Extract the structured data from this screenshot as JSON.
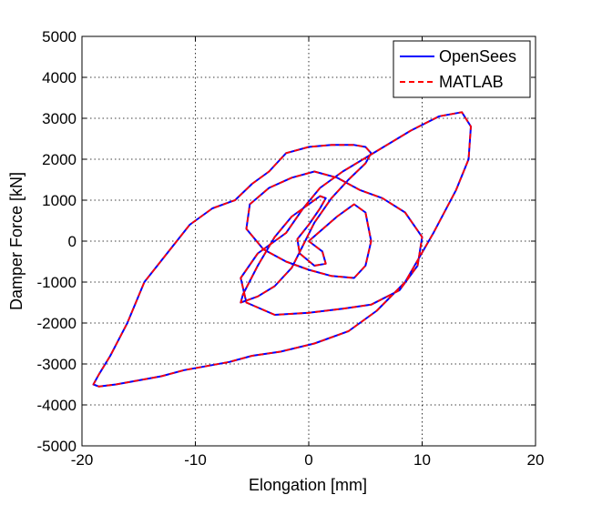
{
  "chart_data": {
    "type": "line",
    "title": "",
    "xlabel": "Elongation [mm]",
    "ylabel": "Damper Force [kN]",
    "xlim": [
      -20,
      20
    ],
    "ylim": [
      -5000,
      5000
    ],
    "xticks": [
      -20,
      -10,
      0,
      10,
      20
    ],
    "yticks": [
      -5000,
      -4000,
      -3000,
      -2000,
      -1000,
      0,
      1000,
      2000,
      3000,
      4000,
      5000
    ],
    "xtick_labels": [
      "-20",
      "-10",
      "0",
      "10",
      "20"
    ],
    "ytick_labels": [
      "-5000",
      "-4000",
      "-3000",
      "-2000",
      "-1000",
      "0",
      "1000",
      "2000",
      "3000",
      "4000",
      "5000"
    ],
    "grid": true,
    "legend": {
      "position": "top-right",
      "entries": [
        "OpenSees",
        "MATLAB"
      ]
    },
    "series": [
      {
        "name": "OpenSees",
        "color": "#0000ff",
        "style": "solid",
        "x": [
          0,
          2.5,
          4,
          5,
          5.5,
          5,
          4,
          2,
          0,
          -2,
          -4,
          -5.5,
          -5.2,
          -3.5,
          -1.5,
          0.5,
          2.5,
          4.5,
          6.5,
          8.5,
          10,
          9.6,
          8,
          5.5,
          3,
          0,
          -3,
          -5.5,
          -6,
          -4.5,
          -2,
          -0.5,
          1,
          3,
          6,
          9,
          11.5,
          13.5,
          14.3,
          14.1,
          13,
          11,
          8.5,
          6,
          3.5,
          0.5,
          -2.5,
          -5,
          -7,
          -9,
          -11,
          -13,
          -15,
          -17,
          -18.5,
          -19,
          -18.5,
          -17.5,
          -16,
          -14.5,
          -12.5,
          -10.5,
          -8.5,
          -6.5,
          -5,
          -3.5,
          -2.5,
          -2,
          0,
          2,
          4,
          5,
          5.5,
          5,
          3.5,
          2,
          0.5,
          -0.5,
          -1.5,
          -3,
          -4.5,
          -5.5,
          -6,
          -5.8,
          -4.5,
          -3,
          -1.5,
          0,
          1,
          1.5,
          1,
          0,
          -1,
          -0.8,
          0.5,
          1.5,
          1.2,
          0
        ],
        "y": [
          0,
          600,
          900,
          700,
          0,
          -600,
          -900,
          -850,
          -700,
          -500,
          -200,
          300,
          900,
          1300,
          1550,
          1700,
          1550,
          1250,
          1050,
          700,
          100,
          -600,
          -1200,
          -1550,
          -1650,
          -1750,
          -1800,
          -1500,
          -900,
          -300,
          200,
          800,
          1300,
          1700,
          2200,
          2700,
          3050,
          3150,
          2800,
          2000,
          1250,
          200,
          -1000,
          -1700,
          -2200,
          -2500,
          -2700,
          -2800,
          -2950,
          -3050,
          -3150,
          -3300,
          -3400,
          -3500,
          -3550,
          -3500,
          -3250,
          -2800,
          -2000,
          -1000,
          -300,
          400,
          800,
          1000,
          1400,
          1700,
          2000,
          2150,
          2300,
          2350,
          2350,
          2300,
          2150,
          1900,
          1500,
          1050,
          450,
          -100,
          -650,
          -1100,
          -1350,
          -1450,
          -1500,
          -1300,
          -600,
          100,
          600,
          900,
          1100,
          1050,
          800,
          400,
          50,
          -300,
          -600,
          -550,
          -250,
          0
        ]
      },
      {
        "name": "MATLAB",
        "color": "#ff0000",
        "style": "dashed",
        "x": [
          0,
          2.5,
          4,
          5,
          5.5,
          5,
          4,
          2,
          0,
          -2,
          -4,
          -5.5,
          -5.2,
          -3.5,
          -1.5,
          0.5,
          2.5,
          4.5,
          6.5,
          8.5,
          10,
          9.6,
          8,
          5.5,
          3,
          0,
          -3,
          -5.5,
          -6,
          -4.5,
          -2,
          -0.5,
          1,
          3,
          6,
          9,
          11.5,
          13.5,
          14.3,
          14.1,
          13,
          11,
          8.5,
          6,
          3.5,
          0.5,
          -2.5,
          -5,
          -7,
          -9,
          -11,
          -13,
          -15,
          -17,
          -18.5,
          -19,
          -18.5,
          -17.5,
          -16,
          -14.5,
          -12.5,
          -10.5,
          -8.5,
          -6.5,
          -5,
          -3.5,
          -2.5,
          -2,
          0,
          2,
          4,
          5,
          5.5,
          5,
          3.5,
          2,
          0.5,
          -0.5,
          -1.5,
          -3,
          -4.5,
          -5.5,
          -6,
          -5.8,
          -4.5,
          -3,
          -1.5,
          0,
          1,
          1.5,
          1,
          0,
          -1,
          -0.8,
          0.5,
          1.5,
          1.2,
          0
        ],
        "y": [
          0,
          600,
          900,
          700,
          0,
          -600,
          -900,
          -850,
          -700,
          -500,
          -200,
          300,
          900,
          1300,
          1550,
          1700,
          1550,
          1250,
          1050,
          700,
          100,
          -600,
          -1200,
          -1550,
          -1650,
          -1750,
          -1800,
          -1500,
          -900,
          -300,
          200,
          800,
          1300,
          1700,
          2200,
          2700,
          3050,
          3150,
          2800,
          2000,
          1250,
          200,
          -1000,
          -1700,
          -2200,
          -2500,
          -2700,
          -2800,
          -2950,
          -3050,
          -3150,
          -3300,
          -3400,
          -3500,
          -3550,
          -3500,
          -3250,
          -2800,
          -2000,
          -1000,
          -300,
          400,
          800,
          1000,
          1400,
          1700,
          2000,
          2150,
          2300,
          2350,
          2350,
          2300,
          2150,
          1900,
          1500,
          1050,
          450,
          -100,
          -650,
          -1100,
          -1350,
          -1450,
          -1500,
          -1300,
          -600,
          100,
          600,
          900,
          1100,
          1050,
          800,
          400,
          50,
          -300,
          -600,
          -550,
          -250,
          0
        ]
      }
    ]
  }
}
